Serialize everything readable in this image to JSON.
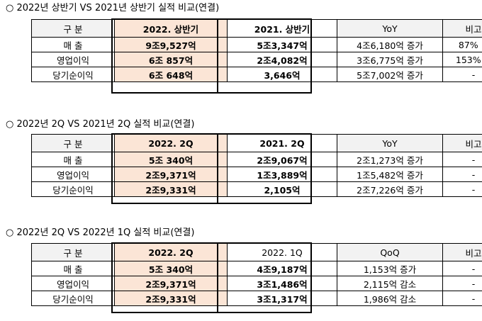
{
  "sections": [
    {
      "title": "○ 2022년 상반기 VS 2021년 상반기 실적 비교(연결)",
      "headers": [
        "구 분",
        "2022. 상반기",
        "2021. 상반기",
        "YoY",
        "비고"
      ],
      "rows": [
        [
          "매 출",
          "9조9,527억",
          "5조3,347억",
          "4조6,180억 증가",
          "87% ↑"
        ],
        [
          "영업이익",
          "6조 857억",
          "2조4,082억",
          "3조6,775억 증가",
          "153% ↑"
        ],
        [
          "당기순이익",
          "6조 648억",
          "3,646억",
          "5조7,002억 증가",
          "-"
        ]
      ]
    },
    {
      "title": "○ 2022년 2Q VS 2021년 2Q 실적 비교(연결)",
      "headers": [
        "구 분",
        "2022. 2Q",
        "2021. 2Q",
        "YoY",
        "비고"
      ],
      "rows": [
        [
          "매 출",
          "5조 340억",
          "2조9,067억",
          "2조1,273억 증가",
          "-"
        ],
        [
          "영업이익",
          "2조9,371억",
          "1조3,889억",
          "1조5,482억 증가",
          "-"
        ],
        [
          "당기순이익",
          "2조9,331억",
          "2,105억",
          "2조7,226억 증가",
          "-"
        ]
      ]
    },
    {
      "title": "○ 2022년 2Q VS 2022년 1Q 실적 비교(연결)",
      "headers": [
        "구 분",
        "2022. 2Q",
        "2022. 1Q",
        "QoQ",
        "비고"
      ],
      "rows": [
        [
          "매 출",
          "5조 340억",
          "4조9,187억",
          "1,153억 증가",
          "-"
        ],
        [
          "영업이익",
          "2조9,371억",
          "3조1,486억",
          "2,115억 감소",
          "-"
        ],
        [
          "당기순이익",
          "2조9,331억",
          "3조1,317억",
          "1,986억 감소",
          "-"
        ]
      ]
    }
  ]
}
